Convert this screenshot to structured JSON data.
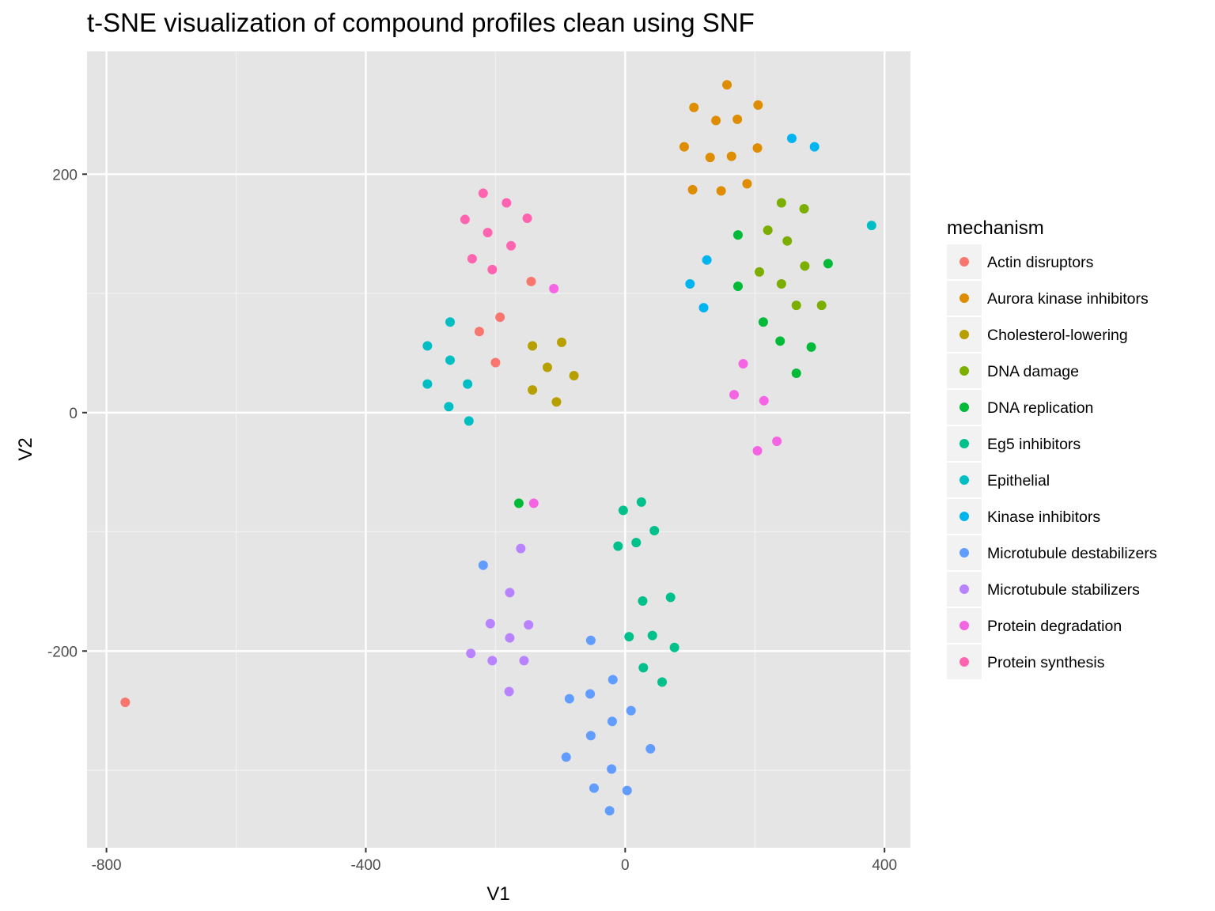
{
  "chart_data": {
    "type": "scatter",
    "title": "t-SNE visualization of compound profiles clean using SNF",
    "xlabel": "V1",
    "ylabel": "V2",
    "xlim": [
      -830,
      440
    ],
    "ylim": [
      -365,
      303
    ],
    "x_ticks": [
      -800,
      -400,
      0,
      400
    ],
    "y_ticks": [
      -200,
      0,
      200
    ],
    "x_minor_ticks": [
      -600,
      -200,
      200
    ],
    "y_minor_ticks": [
      -300,
      -100,
      100
    ],
    "grid": true,
    "legend_title": "mechanism",
    "legend_position": "right",
    "series": [
      {
        "name": "Actin disruptors",
        "color": "#F8766D",
        "points": [
          [
            -771,
            -243
          ],
          [
            -193,
            80
          ],
          [
            -225,
            68
          ],
          [
            -200,
            42
          ],
          [
            -145,
            110
          ]
        ]
      },
      {
        "name": "Aurora kinase inhibitors",
        "color": "#DE8C00",
        "points": [
          [
            157,
            275
          ],
          [
            106,
            256
          ],
          [
            205,
            258
          ],
          [
            140,
            245
          ],
          [
            173,
            246
          ],
          [
            91,
            223
          ],
          [
            204,
            222
          ],
          [
            131,
            214
          ],
          [
            164,
            215
          ],
          [
            104,
            187
          ],
          [
            148,
            186
          ],
          [
            188,
            192
          ]
        ]
      },
      {
        "name": "Cholesterol-lowering",
        "color": "#B79F00",
        "points": [
          [
            -143,
            56
          ],
          [
            -98,
            59
          ],
          [
            -120,
            38
          ],
          [
            -79,
            31
          ],
          [
            -143,
            19
          ],
          [
            -106,
            9
          ]
        ]
      },
      {
        "name": "DNA damage",
        "color": "#7CAE00",
        "points": [
          [
            241,
            176
          ],
          [
            276,
            171
          ],
          [
            220,
            153
          ],
          [
            250,
            144
          ],
          [
            207,
            118
          ],
          [
            277,
            123
          ],
          [
            241,
            108
          ],
          [
            264,
            90
          ],
          [
            303,
            90
          ]
        ]
      },
      {
        "name": "DNA replication",
        "color": "#00BA38",
        "points": [
          [
            174,
            149
          ],
          [
            313,
            125
          ],
          [
            174,
            106
          ],
          [
            213,
            76
          ],
          [
            239,
            60
          ],
          [
            287,
            55
          ],
          [
            264,
            33
          ],
          [
            -164,
            -76
          ]
        ]
      },
      {
        "name": "Eg5 inhibitors",
        "color": "#00C08B",
        "points": [
          [
            25,
            -75
          ],
          [
            -3,
            -82
          ],
          [
            45,
            -99
          ],
          [
            17,
            -109
          ],
          [
            -11,
            -112
          ],
          [
            70,
            -155
          ],
          [
            27,
            -158
          ],
          [
            6,
            -188
          ],
          [
            42,
            -187
          ],
          [
            76,
            -197
          ],
          [
            28,
            -214
          ],
          [
            57,
            -226
          ]
        ]
      },
      {
        "name": "Epithelial",
        "color": "#00BFC4",
        "points": [
          [
            380,
            157
          ],
          [
            -270,
            76
          ],
          [
            -305,
            56
          ],
          [
            -270,
            44
          ],
          [
            -305,
            24
          ],
          [
            -243,
            24
          ],
          [
            -272,
            5
          ],
          [
            -241,
            -7
          ]
        ]
      },
      {
        "name": "Kinase inhibitors",
        "color": "#00B4F0",
        "points": [
          [
            257,
            230
          ],
          [
            292,
            223
          ],
          [
            126,
            128
          ],
          [
            100,
            108
          ],
          [
            121,
            88
          ]
        ]
      },
      {
        "name": "Microtubule destabilizers",
        "color": "#619CFF",
        "points": [
          [
            -219,
            -128
          ],
          [
            -53,
            -191
          ],
          [
            -19,
            -224
          ],
          [
            -86,
            -240
          ],
          [
            -54,
            -236
          ],
          [
            9,
            -250
          ],
          [
            -20,
            -259
          ],
          [
            -53,
            -271
          ],
          [
            39,
            -282
          ],
          [
            -91,
            -289
          ],
          [
            -21,
            -299
          ],
          [
            -48,
            -315
          ],
          [
            3,
            -317
          ],
          [
            -24,
            -334
          ]
        ]
      },
      {
        "name": "Microtubule stabilizers",
        "color": "#B983FF",
        "points": [
          [
            -161,
            -114
          ],
          [
            -178,
            -151
          ],
          [
            -208,
            -177
          ],
          [
            -149,
            -178
          ],
          [
            -178,
            -189
          ],
          [
            -238,
            -202
          ],
          [
            -205,
            -208
          ],
          [
            -156,
            -208
          ],
          [
            -179,
            -234
          ]
        ]
      },
      {
        "name": "Protein degradation",
        "color": "#F564E3",
        "points": [
          [
            -110,
            104
          ],
          [
            -141,
            -76
          ],
          [
            182,
            41
          ],
          [
            168,
            15
          ],
          [
            214,
            10
          ],
          [
            234,
            -24
          ],
          [
            204,
            -32
          ]
        ]
      },
      {
        "name": "Protein synthesis",
        "color": "#FF64B0",
        "points": [
          [
            -219,
            184
          ],
          [
            -183,
            176
          ],
          [
            -151,
            163
          ],
          [
            -247,
            162
          ],
          [
            -212,
            151
          ],
          [
            -176,
            140
          ],
          [
            -236,
            129
          ],
          [
            -205,
            120
          ]
        ]
      }
    ]
  }
}
